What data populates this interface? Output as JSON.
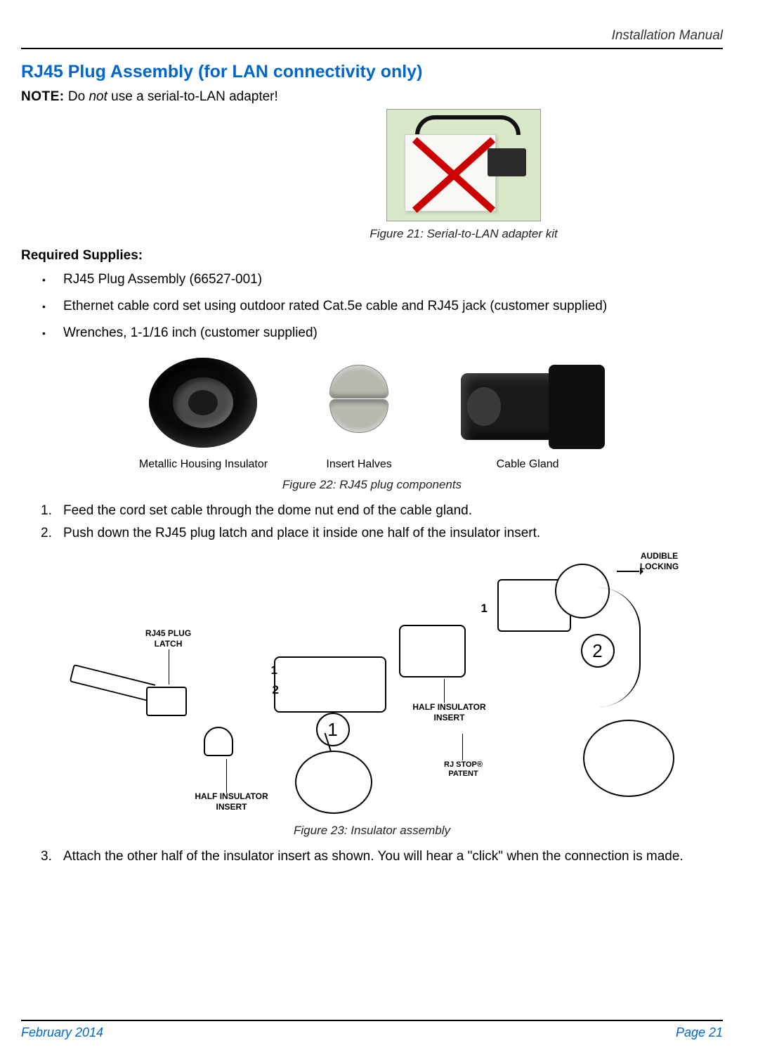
{
  "header": {
    "manual_title": "Installation Manual"
  },
  "section": {
    "title": "RJ45 Plug Assembly (for LAN connectivity only)"
  },
  "note": {
    "label": "NOTE:",
    "text_pre": "Do ",
    "text_em": "not",
    "text_post": " use a serial-to-LAN adapter!"
  },
  "figure21": {
    "caption": "Figure 21:  Serial-to-LAN adapter kit"
  },
  "supplies": {
    "heading": "Required Supplies:",
    "items": [
      "RJ45 Plug Assembly (66527-001)",
      "Ethernet cable cord set using outdoor rated Cat.5e cable and RJ45 jack (customer supplied)",
      "Wrenches, 1-1/16 inch (customer supplied)"
    ]
  },
  "figure22": {
    "label1": "Metallic Housing Insulator",
    "label2": "Insert Halves",
    "label3": "Cable Gland",
    "caption": "Figure 22:  RJ45 plug components"
  },
  "steps12": {
    "s1": "Feed the cord set cable through the dome nut end of the cable gland.",
    "s2": "Push down the RJ45 plug latch and place it inside one half of the insulator insert."
  },
  "figure23": {
    "lbl_audible": "AUDIBLE LOCKING",
    "lbl_rj45plug": "RJ45 PLUG LATCH",
    "lbl_halfins": "HALF INSULATOR INSERT",
    "lbl_rjstop": "RJ STOP® PATENT",
    "num_1": "1",
    "num_2": "2",
    "caption": "Figure 23:  Insulator assembly"
  },
  "steps3": {
    "s3": "Attach the other half of the insulator insert as shown. You will hear a \"click\" when the connection is made."
  },
  "footer": {
    "date": "February 2014",
    "page": "Page 21"
  },
  "colors": {
    "accent_blue": "#0066cc",
    "cross_red": "#cc0000",
    "body_text": "#000000",
    "rule": "#000000"
  },
  "typography": {
    "body_pt": 19,
    "title_pt": 25,
    "caption_pt": 17,
    "diagram_label_pt": 12
  }
}
